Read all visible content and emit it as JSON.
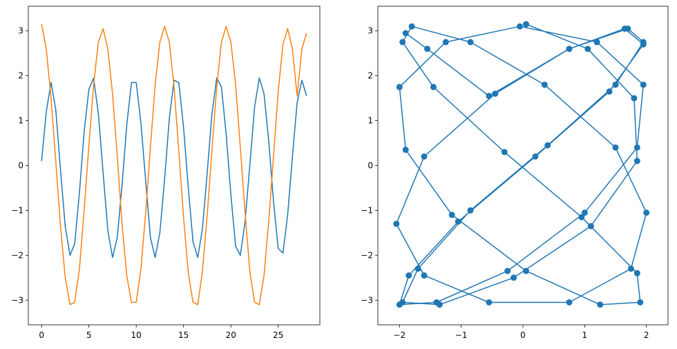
{
  "chart_data": [
    {
      "type": "line",
      "xlim": [
        -1.4,
        29.4
      ],
      "ylim": [
        -3.55,
        3.55
      ],
      "xticks": [
        0,
        5,
        10,
        15,
        20,
        25
      ],
      "yticks": [
        -3,
        -2,
        -1,
        0,
        1,
        2,
        3
      ],
      "xtick_labels": [
        "0",
        "5",
        "10",
        "15",
        "20",
        "25"
      ],
      "ytick_labels": [
        "−3",
        "−2",
        "−1",
        "0",
        "1",
        "2",
        "3"
      ],
      "grid": false,
      "series": [
        {
          "color": "#1f77b4",
          "x": [
            0,
            0.5,
            1,
            1.5,
            2,
            2.5,
            3,
            3.5,
            4,
            4.5,
            5,
            5.5,
            6,
            6.5,
            7,
            7.5,
            8,
            8.5,
            9,
            9.5,
            10,
            10.5,
            11,
            11.5,
            12,
            12.5,
            13,
            13.5,
            14,
            14.5,
            15,
            15.5,
            16,
            16.5,
            17,
            17.5,
            18,
            18.5,
            19,
            19.5,
            20,
            20.5,
            21,
            21.5,
            22,
            22.5,
            23,
            23.5,
            24,
            24.5,
            25,
            25.5,
            26,
            26.5,
            27,
            27.5,
            28
          ],
          "y": [
            0.1,
            1.2,
            1.85,
            1.25,
            -0.1,
            -1.35,
            -2.0,
            -1.75,
            -0.6,
            0.75,
            1.7,
            1.95,
            1.15,
            -0.15,
            -1.45,
            -2.05,
            -1.6,
            -0.45,
            0.9,
            1.85,
            1.85,
            0.95,
            -0.35,
            -1.6,
            -2.05,
            -1.5,
            -0.3,
            1.05,
            1.9,
            1.85,
            0.85,
            -0.5,
            -1.7,
            -2.05,
            -1.4,
            -0.15,
            1.15,
            1.95,
            1.75,
            0.7,
            -0.65,
            -1.8,
            -2.0,
            -1.25,
            0.0,
            1.3,
            1.95,
            1.6,
            0.55,
            -0.8,
            -1.85,
            -1.95,
            -1.1,
            0.2,
            1.4,
            1.9,
            1.55
          ]
        },
        {
          "color": "#ff7f0e",
          "x": [
            0,
            0.5,
            1,
            1.5,
            2,
            2.5,
            3,
            3.5,
            4,
            4.5,
            5,
            5.5,
            6,
            6.5,
            7,
            7.5,
            8,
            8.5,
            9,
            9.5,
            10,
            10.5,
            11,
            11.5,
            12,
            12.5,
            13,
            13.5,
            14,
            14.5,
            15,
            15.5,
            16,
            16.5,
            17,
            17.5,
            18,
            18.5,
            19,
            19.5,
            20,
            20.5,
            21,
            21.5,
            22,
            22.5,
            23,
            23.5,
            24,
            24.5,
            25,
            25.5,
            26,
            26.5,
            27,
            27.5,
            28
          ],
          "y": [
            3.15,
            2.6,
            1.5,
            0.1,
            -1.35,
            -2.5,
            -3.1,
            -3.05,
            -2.3,
            -1.0,
            0.45,
            1.8,
            2.75,
            3.05,
            2.6,
            1.6,
            0.2,
            -1.3,
            -2.45,
            -3.05,
            -3.05,
            -2.3,
            -1.05,
            0.4,
            1.8,
            2.75,
            3.1,
            2.75,
            1.75,
            0.3,
            -1.15,
            -2.4,
            -3.05,
            -3.1,
            -2.35,
            -1.1,
            0.35,
            1.75,
            2.75,
            3.1,
            2.75,
            1.8,
            0.4,
            -1.05,
            -2.35,
            -3.05,
            -3.1,
            -2.45,
            -1.25,
            0.2,
            1.65,
            2.7,
            3.05,
            2.6,
            1.55,
            2.6,
            2.95
          ]
        }
      ]
    },
    {
      "type": "line",
      "marker": "circle",
      "xlim": [
        -2.35,
        2.35
      ],
      "ylim": [
        -3.55,
        3.55
      ],
      "xticks": [
        -2,
        -1,
        0,
        1,
        2
      ],
      "yticks": [
        -3,
        -2,
        -1,
        0,
        1,
        2,
        3
      ],
      "xtick_labels": [
        "−2",
        "−1",
        "0",
        "1",
        "2"
      ],
      "ytick_labels": [
        "−3",
        "−2",
        "−1",
        "0",
        "1",
        "2",
        "3"
      ],
      "grid": false,
      "series": [
        {
          "color": "#1f77b4",
          "x": [
            0.05,
            1.05,
            1.8,
            1.85,
            1.1,
            -0.15,
            -1.35,
            -1.95,
            -1.7,
            -0.85,
            0.4,
            1.5,
            1.95,
            1.7,
            0.75,
            -0.45,
            -1.6,
            -2.05,
            -1.6,
            -0.55,
            0.75,
            1.75,
            2.0,
            1.5,
            0.35,
            -0.85,
            -1.8,
            -1.95,
            -1.45,
            -0.3,
            0.95,
            1.85,
            1.9,
            1.25,
            0.05,
            -1.15,
            -1.9,
            -2.0,
            -1.25,
            -0.05,
            1.2,
            1.95,
            1.85,
            1.0,
            -0.25,
            -1.4,
            -2.0,
            -1.85,
            -1.05,
            0.2,
            1.4,
            1.95,
            1.65,
            0.75,
            -0.55,
            -1.55,
            -1.9
          ],
          "y": [
            3.15,
            2.6,
            1.5,
            0.1,
            -1.35,
            -2.5,
            -3.1,
            -3.05,
            -2.3,
            -1.0,
            0.45,
            1.8,
            2.75,
            3.05,
            2.6,
            1.6,
            0.2,
            -1.3,
            -2.45,
            -3.05,
            -3.05,
            -2.3,
            -1.05,
            0.4,
            1.8,
            2.75,
            3.1,
            2.75,
            1.75,
            0.3,
            -1.15,
            -2.4,
            -3.05,
            -3.1,
            -2.35,
            -1.1,
            0.35,
            1.75,
            2.75,
            3.1,
            2.75,
            1.8,
            0.4,
            -1.05,
            -2.35,
            -3.05,
            -3.1,
            -2.45,
            -1.25,
            0.2,
            1.65,
            2.7,
            3.05,
            2.6,
            1.55,
            2.6,
            2.95
          ]
        }
      ]
    }
  ]
}
